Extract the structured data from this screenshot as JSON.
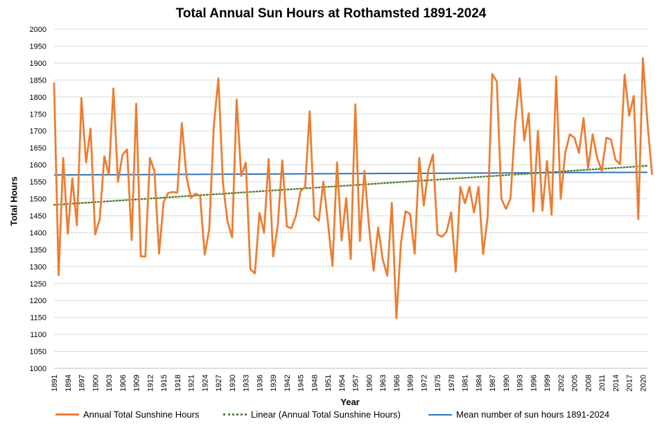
{
  "chart_data": {
    "type": "line",
    "title": "Total Annual Sun Hours at Rothamsted 1891-2024",
    "xlabel": "Year",
    "ylabel": "Total Hours",
    "ylim": [
      1000,
      2000
    ],
    "y_ticks": [
      1000,
      1050,
      1100,
      1150,
      1200,
      1250,
      1300,
      1350,
      1400,
      1450,
      1500,
      1550,
      1600,
      1650,
      1700,
      1750,
      1800,
      1850,
      1900,
      1950,
      2000
    ],
    "x_tick_labels": [
      "1891",
      "1894",
      "1897",
      "1900",
      "1903",
      "1906",
      "1909",
      "1912",
      "1915",
      "1918",
      "1921",
      "1924",
      "1927",
      "1930",
      "1933",
      "1936",
      "1939",
      "1942",
      "1945",
      "1948",
      "1951",
      "1954",
      "1957",
      "1960",
      "1963",
      "1966",
      "1969",
      "1972",
      "1975",
      "1978",
      "1981",
      "1984",
      "1987",
      "1990",
      "1993",
      "1996",
      "1999",
      "2002",
      "2005",
      "2008",
      "2011",
      "2014",
      "2017",
      "2020"
    ],
    "grid": true,
    "legend_position": "bottom",
    "x_start": 1891,
    "x_end": 2021,
    "series": [
      {
        "name": "Annual Total Sunshine Hours",
        "color": "#ED7D31",
        "style": "solid",
        "values": [
          1840,
          1275,
          1620,
          1397,
          1560,
          1422,
          1797,
          1607,
          1707,
          1395,
          1440,
          1625,
          1570,
          1825,
          1550,
          1630,
          1645,
          1378,
          1780,
          1330,
          1330,
          1620,
          1580,
          1338,
          1490,
          1517,
          1520,
          1518,
          1723,
          1565,
          1503,
          1515,
          1508,
          1335,
          1410,
          1715,
          1855,
          1545,
          1433,
          1386,
          1792,
          1567,
          1606,
          1292,
          1280,
          1458,
          1400,
          1617,
          1330,
          1420,
          1613,
          1418,
          1413,
          1450,
          1522,
          1535,
          1758,
          1448,
          1435,
          1550,
          1430,
          1302,
          1607,
          1377,
          1502,
          1322,
          1778,
          1375,
          1582,
          1418,
          1288,
          1415,
          1322,
          1273,
          1488,
          1148,
          1370,
          1463,
          1455,
          1338,
          1620,
          1480,
          1585,
          1630,
          1395,
          1388,
          1403,
          1460,
          1285,
          1535,
          1487,
          1535,
          1460,
          1535,
          1337,
          1448,
          1868,
          1845,
          1500,
          1470,
          1500,
          1720,
          1855,
          1672,
          1752,
          1462,
          1700,
          1465,
          1612,
          1453,
          1860,
          1500,
          1636,
          1690,
          1680,
          1635,
          1738,
          1590,
          1690,
          1620,
          1582,
          1680,
          1675,
          1615,
          1602,
          1866,
          1745,
          1803,
          1440,
          1914,
          1725,
          1573
        ]
      },
      {
        "name": "Linear (Annual Total Sunshine Hours)",
        "color": "#548235",
        "style": "dotted",
        "values": [
          1482,
          1597
        ]
      },
      {
        "name": "Mean number of sun hours 1891-2024",
        "color": "#2E75B6",
        "style": "solid",
        "values": [
          1570,
          1578
        ]
      }
    ]
  }
}
